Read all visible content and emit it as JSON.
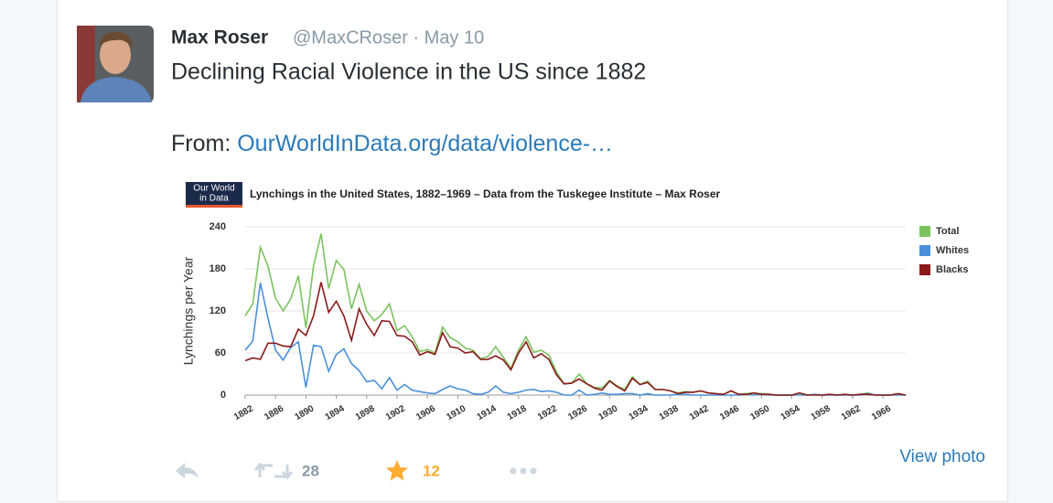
{
  "tweet": {
    "name": "Max Roser",
    "meta": "@MaxCRoser · May 10",
    "text": "Declining Racial Violence in the US since 1882",
    "link_prefix": "From: ",
    "link": "OurWorldInData.org/data/violence-…",
    "retweets": 28,
    "favorites": 12,
    "view_photo": "View photo"
  },
  "logo": [
    "Our World",
    "in Data"
  ],
  "chart_data": {
    "type": "line",
    "title": "Lynchings in the United States, 1882–1969 – Data from the Tuskegee Institute – Max Roser",
    "y_label": "Lynchings per Year",
    "x": [
      1882,
      1883,
      1884,
      1885,
      1886,
      1887,
      1888,
      1889,
      1890,
      1891,
      1892,
      1893,
      1894,
      1895,
      1896,
      1897,
      1898,
      1899,
      1900,
      1901,
      1902,
      1903,
      1904,
      1905,
      1906,
      1907,
      1908,
      1909,
      1910,
      1911,
      1912,
      1913,
      1914,
      1915,
      1916,
      1917,
      1918,
      1919,
      1920,
      1921,
      1922,
      1923,
      1924,
      1925,
      1926,
      1927,
      1928,
      1929,
      1930,
      1931,
      1932,
      1933,
      1934,
      1935,
      1936,
      1937,
      1938,
      1939,
      1940,
      1941,
      1942,
      1943,
      1944,
      1945,
      1946,
      1947,
      1948,
      1949,
      1950,
      1951,
      1952,
      1953,
      1954,
      1955,
      1956,
      1957,
      1958,
      1959,
      1960,
      1961,
      1962,
      1963,
      1964,
      1965,
      1966,
      1967,
      1968,
      1969
    ],
    "series": [
      {
        "name": "Total",
        "color": "#7cc35f",
        "values": [
          113,
          130,
          211,
          184,
          138,
          120,
          137,
          170,
          96,
          184,
          230,
          152,
          192,
          179,
          123,
          158,
          120,
          106,
          115,
          130,
          92,
          99,
          83,
          62,
          65,
          60,
          97,
          82,
          76,
          67,
          64,
          52,
          55,
          69,
          54,
          38,
          64,
          83,
          61,
          64,
          57,
          33,
          16,
          17,
          30,
          16,
          11,
          10,
          21,
          13,
          8,
          26,
          15,
          20,
          8,
          8,
          6,
          3,
          5,
          4,
          6,
          3,
          2,
          1,
          6,
          1,
          2,
          3,
          2,
          1,
          0,
          0,
          0,
          3,
          0,
          1,
          0,
          1,
          0,
          1,
          0,
          1,
          3,
          0,
          0,
          0,
          2,
          0
        ]
      },
      {
        "name": "Whites",
        "color": "#4a90d9",
        "values": [
          64,
          77,
          160,
          110,
          64,
          50,
          68,
          76,
          11,
          71,
          69,
          34,
          58,
          66,
          45,
          35,
          19,
          21,
          9,
          25,
          7,
          15,
          7,
          5,
          3,
          2,
          8,
          13,
          9,
          7,
          2,
          1,
          4,
          13,
          4,
          2,
          4,
          7,
          8,
          5,
          6,
          4,
          0,
          0,
          7,
          0,
          1,
          3,
          1,
          1,
          2,
          2,
          0,
          2,
          0,
          0,
          0,
          1,
          1,
          0,
          0,
          0,
          0,
          0,
          0,
          0,
          1,
          0,
          1,
          0,
          0,
          0,
          0,
          0,
          0,
          1,
          0,
          0,
          0,
          0,
          0,
          0,
          2,
          0,
          0,
          0,
          0,
          0
        ]
      },
      {
        "name": "Blacks",
        "color": "#8b1a1a",
        "values": [
          49,
          53,
          51,
          74,
          74,
          70,
          69,
          94,
          85,
          113,
          161,
          118,
          134,
          113,
          78,
          123,
          101,
          85,
          106,
          105,
          85,
          84,
          76,
          57,
          62,
          58,
          89,
          69,
          67,
          60,
          62,
          51,
          51,
          56,
          50,
          36,
          60,
          76,
          53,
          59,
          51,
          29,
          16,
          17,
          23,
          16,
          10,
          7,
          20,
          12,
          6,
          24,
          15,
          18,
          8,
          8,
          6,
          2,
          4,
          4,
          6,
          3,
          2,
          1,
          6,
          1,
          1,
          3,
          1,
          1,
          0,
          0,
          0,
          3,
          0,
          0,
          0,
          1,
          0,
          1,
          0,
          1,
          1,
          0,
          0,
          0,
          2,
          0
        ]
      }
    ],
    "xlim": [
      1882,
      1969
    ],
    "xticks": [
      1882,
      1886,
      1890,
      1894,
      1898,
      1902,
      1906,
      1910,
      1914,
      1918,
      1922,
      1926,
      1930,
      1934,
      1938,
      1942,
      1946,
      1950,
      1954,
      1958,
      1962,
      1966
    ],
    "ylim": [
      0,
      240
    ],
    "yticks": [
      0,
      60,
      120,
      180,
      240
    ],
    "grid": true,
    "legend": "right"
  }
}
